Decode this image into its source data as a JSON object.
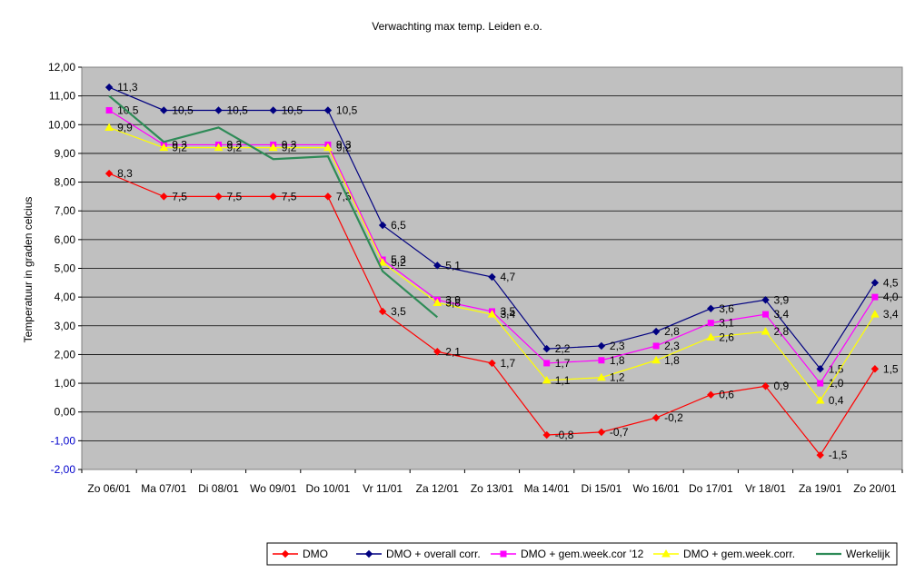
{
  "chart_data": {
    "type": "line",
    "title": "Verwachting max temp. Leiden e.o.",
    "xlabel": "",
    "ylabel": "Temperatuur in graden celcius",
    "ylim": [
      -2,
      12
    ],
    "ystep": 1,
    "grid": true,
    "legend_position": "bottom-right",
    "categories": [
      "Zo 06/01",
      "Ma 07/01",
      "Di 08/01",
      "Wo 09/01",
      "Do 10/01",
      "Vr 11/01",
      "Za 12/01",
      "Zo 13/01",
      "Ma 14/01",
      "Di 15/01",
      "Wo 16/01",
      "Do 17/01",
      "Vr 18/01",
      "Za 19/01",
      "Zo 20/01"
    ],
    "series": [
      {
        "name": "DMO",
        "color": "#ff0000",
        "marker": "diamond",
        "labels": true,
        "values": [
          8.3,
          7.5,
          7.5,
          7.5,
          7.5,
          3.5,
          2.1,
          1.7,
          -0.8,
          -0.7,
          -0.2,
          0.6,
          0.9,
          -1.5,
          1.5
        ]
      },
      {
        "name": "DMO + overall corr.",
        "color": "#000080",
        "marker": "diamond",
        "labels": true,
        "values": [
          11.3,
          10.5,
          10.5,
          10.5,
          10.5,
          6.5,
          5.1,
          4.7,
          2.2,
          2.3,
          2.8,
          3.6,
          3.9,
          1.5,
          4.5
        ]
      },
      {
        "name": "DMO + gem.week.cor '12",
        "color": "#ff00ff",
        "marker": "square",
        "labels": true,
        "values": [
          10.5,
          9.3,
          9.3,
          9.3,
          9.3,
          5.3,
          3.9,
          3.5,
          1.7,
          1.8,
          2.3,
          3.1,
          3.4,
          1.0,
          4.0
        ]
      },
      {
        "name": "DMO + gem.week.corr.",
        "color": "#ffff00",
        "marker": "triangle",
        "labels": true,
        "values": [
          9.9,
          9.2,
          9.2,
          9.2,
          9.2,
          5.2,
          3.8,
          3.4,
          1.1,
          1.2,
          1.8,
          2.6,
          2.8,
          0.4,
          3.4
        ]
      },
      {
        "name": "Werkelijk",
        "color": "#2e8b57",
        "marker": "none",
        "labels": false,
        "values": [
          11.0,
          9.4,
          9.9,
          8.8,
          8.9,
          4.9,
          3.3,
          null,
          null,
          null,
          null,
          null,
          null,
          null,
          null
        ]
      }
    ]
  }
}
